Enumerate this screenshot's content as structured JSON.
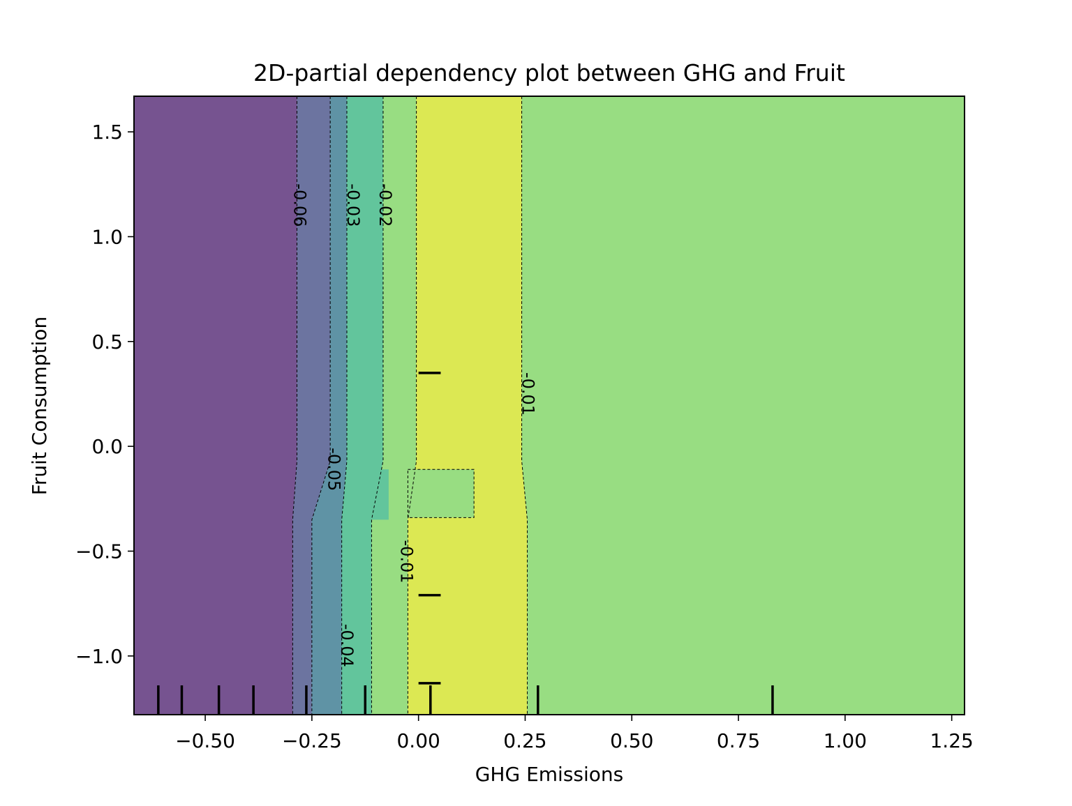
{
  "chart_data": {
    "type": "contour",
    "title": "2D-partial dependency plot between GHG and Fruit",
    "xlabel": "GHG Emissions",
    "ylabel": "Fruit Consumption",
    "xlim": [
      -0.667,
      1.28
    ],
    "ylim": [
      -1.28,
      1.67
    ],
    "xticks": [
      -0.5,
      -0.25,
      0.0,
      0.25,
      0.5,
      0.75,
      1.0,
      1.25
    ],
    "xtick_labels": [
      "−0.50",
      "−0.25",
      "0.00",
      "0.25",
      "0.50",
      "0.75",
      "1.00",
      "1.25"
    ],
    "yticks": [
      -1.0,
      -0.5,
      0.0,
      0.5,
      1.0,
      1.5
    ],
    "ytick_labels": [
      "−1.0",
      "−0.5",
      "0.0",
      "0.5",
      "1.0",
      "1.5"
    ],
    "colors": {
      "band_darkest": "#765390",
      "band_dark": "#6c74a0",
      "band_mid": "#5f93a5",
      "band_teal": "#62c59c",
      "band_light_green": "#98dd82",
      "band_yellow": "#dce853"
    },
    "regions": [
      {
        "level": "< -0.06",
        "color_key": "band_darkest",
        "boundary_x": [
          -0.667,
          -0.285
        ],
        "lower_boundary_x": [
          -0.667,
          -0.295
        ]
      },
      {
        "level": "-0.06 to -0.05",
        "color_key": "band_dark",
        "boundary_x": [
          -0.285,
          -0.207
        ],
        "lower_boundary_x": [
          -0.295,
          -0.25
        ]
      },
      {
        "level": "-0.05 to -0.04",
        "color_key": "band_mid",
        "boundary_x": [
          -0.207,
          -0.168
        ],
        "lower_boundary_x": [
          -0.25,
          -0.18
        ]
      },
      {
        "level": "-0.04 to -0.02",
        "color_key": "band_teal",
        "boundary_x": [
          -0.168,
          -0.083
        ],
        "lower_boundary_x": [
          -0.18,
          -0.11
        ]
      },
      {
        "level": "-0.02 to -0.01",
        "color_key": "band_light_green",
        "boundary_x": [
          -0.083,
          -0.005
        ],
        "lower_boundary_x": [
          -0.11,
          -0.025
        ]
      },
      {
        "level": "> -0.01",
        "color_key": "band_yellow",
        "boundary_x": [
          -0.005,
          0.242
        ],
        "lower_boundary_x": [
          -0.025,
          0.255
        ]
      },
      {
        "level": "-0.02 to -0.01",
        "color_key": "band_light_green",
        "boundary_x": [
          0.242,
          1.28
        ],
        "lower_boundary_x": [
          0.255,
          1.28
        ]
      }
    ],
    "contour_labels": [
      {
        "text": "-0.06",
        "x": -0.28,
        "y": 1.15
      },
      {
        "text": "-0.03",
        "x": -0.155,
        "y": 1.15
      },
      {
        "text": "-0.02",
        "x": -0.08,
        "y": 1.15
      },
      {
        "text": "-0.01",
        "x": 0.255,
        "y": 0.25
      },
      {
        "text": "-0.05",
        "x": -0.2,
        "y": -0.11
      },
      {
        "text": "-0.01",
        "x": -0.03,
        "y": -0.55
      },
      {
        "text": "-0.04",
        "x": -0.17,
        "y": -0.95
      }
    ],
    "x_deciles": [
      -0.61,
      -0.555,
      -0.468,
      -0.387,
      -0.263,
      -0.125,
      0.028,
      0.28,
      0.83
    ],
    "y_deciles": [
      0.35,
      -0.71,
      -1.13
    ]
  }
}
